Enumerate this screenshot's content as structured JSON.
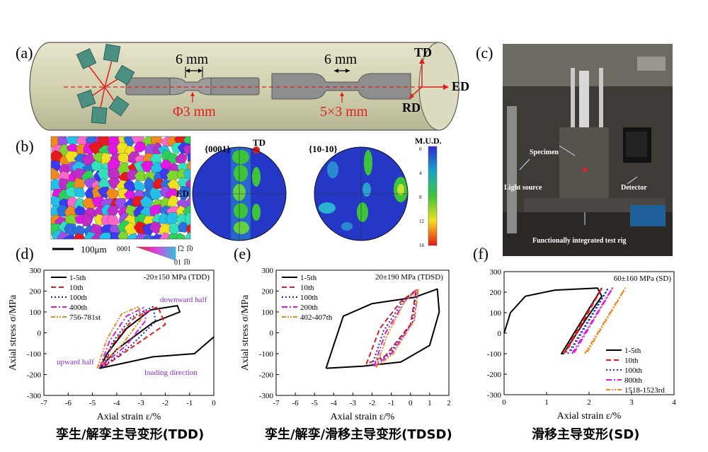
{
  "panels": {
    "a": {
      "label": "(a)",
      "dim1_top": "6 mm",
      "dim1_bottom": "Φ3 mm",
      "dim2_top": "6 mm",
      "dim2_bottom": "5×3 mm",
      "axis_td": "TD",
      "axis_ed": "ED",
      "axis_rd": "RD"
    },
    "b": {
      "label": "(b)",
      "scalebar": "100μm",
      "ipf_0001": "0001",
      "ipf_1210": "1̅2 1̅0",
      "ipf_0110": "01 1̅0",
      "pf1_title": "{0001}",
      "pf2_title": "{10-10}",
      "pf_td": "TD",
      "pf_ed": "ED",
      "colorbar_title": "M.U.D.",
      "colorbar_ticks": [
        "0",
        "4",
        "8",
        "12",
        "16"
      ]
    },
    "c": {
      "label": "(c)",
      "specimen": "Specimen",
      "light_source": "Light source",
      "detector": "Detector",
      "rig": "Functionally integrated test rig"
    }
  },
  "captions": {
    "d": "孪生/解孪主导变形(TDD)",
    "e": "孪生/解孪/滑移主导变形(TDSD)",
    "f": "滑移主导变形(SD)"
  },
  "colors": {
    "black": "#000000",
    "red": "#e8191d",
    "blue": "#1f25d6",
    "magenta": "#e317e3",
    "orange": "#f08a1c",
    "purple": "#8a2be2"
  },
  "chart_data": [
    {
      "panel": "(d)",
      "type": "line",
      "annotation": "-20±150 MPa (TDD)",
      "xlabel": "Axial strain ε/%",
      "ylabel": "Axial stress σ/MPa",
      "xlim": [
        -7,
        0
      ],
      "ylim": [
        -300,
        300
      ],
      "xticks": [
        "-7",
        "-6",
        "-5",
        "-4",
        "-3",
        "-2",
        "-1",
        "0"
      ],
      "yticks": [
        "-300",
        "-200",
        "-100",
        "0",
        "100",
        "200",
        "300"
      ],
      "notes": [
        "downward half",
        "upward half",
        "loading direction"
      ],
      "series": [
        {
          "name": "1-5th",
          "x": [
            0,
            -0.8,
            -2.5,
            -4.7,
            -4.4,
            -3.6,
            -2.6,
            -1.5,
            -1.4,
            -2.5,
            -4.0,
            -4.7
          ],
          "y": [
            -20,
            -100,
            -115,
            -170,
            -100,
            20,
            110,
            130,
            100,
            50,
            -80,
            -170
          ]
        },
        {
          "name": "10th",
          "x": [
            -4.5,
            -4.2,
            -3.3,
            -2.3,
            -2.0,
            -3.0,
            -4.5
          ],
          "y": [
            -160,
            -60,
            70,
            125,
            40,
            -40,
            -160
          ]
        },
        {
          "name": "100th",
          "x": [
            -4.6,
            -4.2,
            -3.4,
            -2.5,
            -2.4,
            -3.4,
            -4.6
          ],
          "y": [
            -165,
            -50,
            75,
            125,
            55,
            -60,
            -165
          ]
        },
        {
          "name": "400th",
          "x": [
            -4.7,
            -4.3,
            -3.6,
            -2.9,
            -2.8,
            -3.6,
            -4.7
          ],
          "y": [
            -165,
            -40,
            80,
            120,
            60,
            -60,
            -165
          ]
        },
        {
          "name": "756-781st",
          "x": [
            -4.8,
            -4.4,
            -3.8,
            -3.1,
            -3.0,
            -3.8,
            -4.8
          ],
          "y": [
            -170,
            -30,
            90,
            125,
            65,
            -60,
            -170
          ]
        }
      ]
    },
    {
      "panel": "(e)",
      "type": "line",
      "annotation": "20±190 MPa (TDSD)",
      "xlabel": "Axial strain ε/%",
      "ylabel": "Axial stress σ/MPa",
      "xlim": [
        -7,
        2
      ],
      "ylim": [
        -300,
        300
      ],
      "xticks": [
        "-7",
        "-6",
        "-5",
        "-4",
        "-3",
        "-2",
        "-1",
        "0",
        "1",
        "2"
      ],
      "yticks": [
        "-300",
        "-200",
        "-100",
        "0",
        "100",
        "200",
        "300"
      ],
      "series": [
        {
          "name": "1-5th",
          "x": [
            -4.4,
            -3.5,
            -2.0,
            0.2,
            1.4,
            1.5,
            1.0,
            -0.5,
            -2.5,
            -4.4
          ],
          "y": [
            -170,
            80,
            140,
            170,
            210,
            100,
            -60,
            -140,
            -160,
            -170
          ]
        },
        {
          "name": "10th",
          "x": [
            -2.3,
            -1.6,
            -0.5,
            0.3,
            0.0,
            -1.3,
            -2.3
          ],
          "y": [
            -150,
            20,
            150,
            205,
            40,
            -110,
            -150
          ]
        },
        {
          "name": "100th",
          "x": [
            -2.0,
            -1.4,
            -0.4,
            0.3,
            0.1,
            -1.1,
            -2.0
          ],
          "y": [
            -155,
            10,
            150,
            205,
            50,
            -100,
            -155
          ]
        },
        {
          "name": "200th",
          "x": [
            -1.9,
            -1.3,
            -0.3,
            0.4,
            0.2,
            -1.0,
            -1.9
          ],
          "y": [
            -160,
            0,
            150,
            210,
            60,
            -100,
            -160
          ]
        },
        {
          "name": "402-407th",
          "x": [
            -1.8,
            -1.2,
            -0.3,
            0.4,
            0.2,
            -0.9,
            -1.8
          ],
          "y": [
            -165,
            -10,
            150,
            210,
            60,
            -100,
            -165
          ]
        }
      ]
    },
    {
      "panel": "(f)",
      "type": "line",
      "annotation": "60±160 MPa (SD)",
      "xlabel": "Axial strain ε/%",
      "ylabel": "",
      "xlim": [
        0,
        4
      ],
      "ylim": [
        -300,
        300
      ],
      "xticks": [
        "0",
        "1",
        "2",
        "3",
        "4"
      ],
      "yticks": [
        "-300",
        "-200",
        "-100",
        "0",
        "100",
        "200",
        "300"
      ],
      "series": [
        {
          "name": "1-5th",
          "x": [
            0,
            0.15,
            0.5,
            1.2,
            2.2,
            2.3,
            1.9,
            1.4,
            1.35,
            2.3
          ],
          "y": [
            0,
            100,
            180,
            210,
            220,
            180,
            60,
            -100,
            -100,
            220
          ]
        },
        {
          "name": "10th",
          "x": [
            1.4,
            2.3,
            2.25,
            1.45
          ],
          "y": [
            -100,
            220,
            200,
            -95
          ]
        },
        {
          "name": "100th",
          "x": [
            1.5,
            2.45,
            2.4,
            1.55
          ],
          "y": [
            -100,
            220,
            200,
            -95
          ]
        },
        {
          "name": "800th",
          "x": [
            1.6,
            2.55,
            2.5,
            1.65
          ],
          "y": [
            -100,
            220,
            200,
            -95
          ]
        },
        {
          "name": "1518-1523rd",
          "x": [
            1.9,
            2.85,
            2.8,
            1.95
          ],
          "y": [
            -100,
            220,
            200,
            -95
          ]
        }
      ]
    }
  ]
}
